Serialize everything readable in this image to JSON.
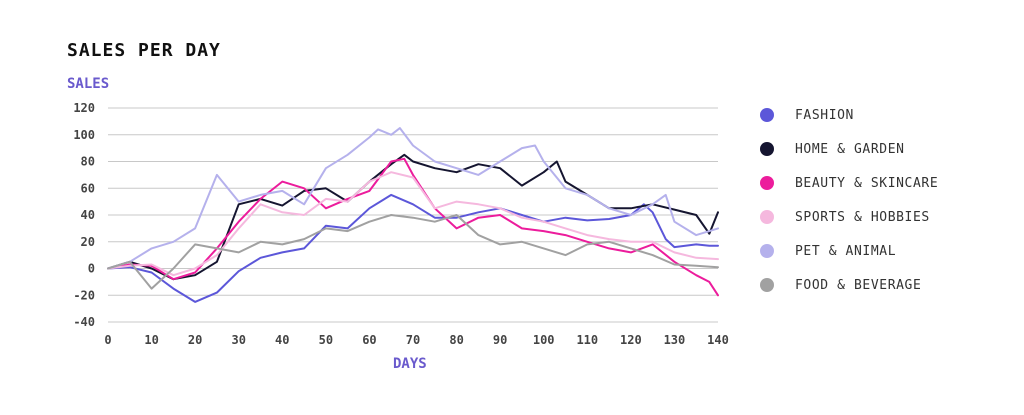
{
  "chart_data": {
    "type": "line",
    "title": "SALES PER DAY",
    "ylabel": "SALES",
    "xlabel": "DAYS",
    "xlim": [
      0,
      140
    ],
    "ylim": [
      -40,
      120
    ],
    "xticks": [
      0,
      10,
      20,
      30,
      40,
      50,
      60,
      70,
      80,
      90,
      100,
      110,
      120,
      130,
      140
    ],
    "yticks": [
      -40,
      -20,
      0,
      20,
      40,
      60,
      80,
      100,
      120
    ],
    "grid": "horizontal",
    "legend_position": "right",
    "series": [
      {
        "name": "FASHION",
        "color": "#5c57d9",
        "x": [
          0,
          5,
          10,
          15,
          20,
          25,
          30,
          35,
          40,
          45,
          50,
          55,
          60,
          65,
          70,
          75,
          80,
          85,
          90,
          95,
          100,
          105,
          110,
          115,
          120,
          123,
          125,
          128,
          130,
          135,
          138,
          140
        ],
        "values": [
          0,
          1,
          -3,
          -15,
          -25,
          -18,
          -2,
          8,
          12,
          15,
          32,
          30,
          45,
          55,
          48,
          38,
          38,
          42,
          45,
          40,
          35,
          38,
          36,
          37,
          40,
          48,
          42,
          22,
          16,
          18,
          17,
          17
        ]
      },
      {
        "name": "HOME & GARDEN",
        "color": "#151530",
        "x": [
          0,
          5,
          10,
          15,
          20,
          25,
          30,
          35,
          40,
          45,
          50,
          55,
          60,
          65,
          68,
          70,
          75,
          80,
          85,
          90,
          95,
          100,
          103,
          105,
          110,
          115,
          120,
          125,
          130,
          135,
          138,
          140
        ],
        "values": [
          0,
          5,
          0,
          -8,
          -5,
          5,
          48,
          52,
          47,
          58,
          60,
          50,
          65,
          78,
          85,
          80,
          75,
          72,
          78,
          75,
          62,
          72,
          80,
          65,
          55,
          45,
          45,
          48,
          44,
          40,
          26,
          42
        ]
      },
      {
        "name": "BEAUTY & SKINCARE",
        "color": "#ec1c9c",
        "x": [
          0,
          5,
          10,
          15,
          20,
          25,
          30,
          35,
          40,
          45,
          50,
          55,
          60,
          65,
          68,
          70,
          75,
          80,
          85,
          90,
          95,
          100,
          105,
          110,
          115,
          120,
          125,
          130,
          135,
          138,
          140
        ],
        "values": [
          0,
          3,
          2,
          -8,
          -3,
          15,
          35,
          52,
          65,
          60,
          45,
          52,
          58,
          80,
          82,
          70,
          45,
          30,
          38,
          40,
          30,
          28,
          25,
          20,
          15,
          12,
          18,
          5,
          -5,
          -10,
          -20
        ]
      },
      {
        "name": "SPORTS & HOBBIES",
        "color": "#f5b8de",
        "x": [
          0,
          5,
          10,
          15,
          20,
          25,
          30,
          35,
          40,
          45,
          50,
          55,
          60,
          65,
          70,
          75,
          80,
          85,
          90,
          95,
          100,
          105,
          110,
          115,
          120,
          125,
          130,
          135,
          140
        ],
        "values": [
          0,
          2,
          3,
          -5,
          0,
          10,
          30,
          48,
          42,
          40,
          52,
          50,
          65,
          72,
          68,
          45,
          50,
          48,
          45,
          38,
          35,
          30,
          25,
          22,
          20,
          20,
          12,
          8,
          7
        ]
      },
      {
        "name": "PET & ANIMAL",
        "color": "#b5b1ec",
        "x": [
          0,
          5,
          10,
          15,
          20,
          25,
          30,
          35,
          40,
          45,
          50,
          55,
          60,
          62,
          65,
          67,
          70,
          75,
          80,
          85,
          90,
          95,
          98,
          100,
          105,
          110,
          115,
          120,
          125,
          128,
          130,
          135,
          140
        ],
        "values": [
          0,
          5,
          15,
          20,
          30,
          70,
          50,
          55,
          58,
          48,
          75,
          85,
          98,
          104,
          100,
          105,
          92,
          80,
          75,
          70,
          80,
          90,
          92,
          80,
          60,
          55,
          45,
          40,
          48,
          55,
          35,
          25,
          30
        ]
      },
      {
        "name": "FOOD & BEVERAGE",
        "color": "#a1a1a1",
        "x": [
          0,
          5,
          10,
          15,
          20,
          25,
          30,
          35,
          40,
          45,
          50,
          55,
          60,
          65,
          70,
          75,
          80,
          85,
          90,
          95,
          100,
          105,
          110,
          115,
          120,
          125,
          130,
          135,
          140
        ],
        "values": [
          0,
          5,
          -15,
          0,
          18,
          15,
          12,
          20,
          18,
          22,
          30,
          28,
          35,
          40,
          38,
          35,
          40,
          25,
          18,
          20,
          15,
          10,
          18,
          20,
          15,
          10,
          3,
          2,
          1
        ]
      }
    ]
  }
}
